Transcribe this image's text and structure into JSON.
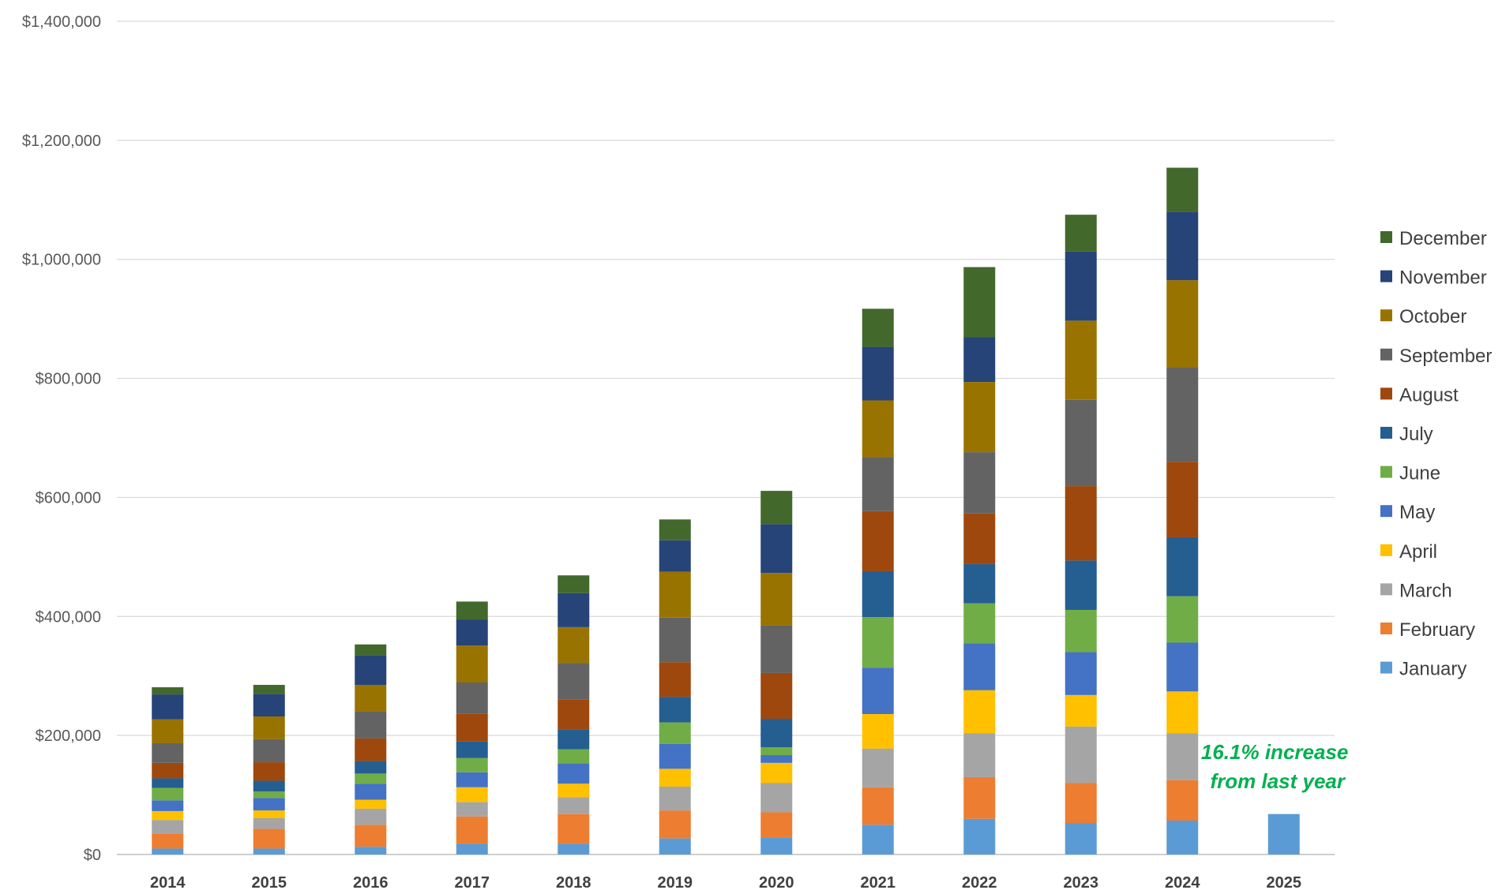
{
  "chart_data": {
    "type": "bar",
    "stacked": true,
    "categories": [
      "2014",
      "2015",
      "2016",
      "2017",
      "2018",
      "2019",
      "2020",
      "2021",
      "2022",
      "2023",
      "2024",
      "2025"
    ],
    "ylim": [
      0,
      1400000
    ],
    "yticks": [
      0,
      200000,
      400000,
      600000,
      800000,
      1000000,
      1200000,
      1400000
    ],
    "ytick_labels": [
      "$0",
      "$200,000",
      "$400,000",
      "$600,000",
      "$800,000",
      "$1,000,000",
      "$1,200,000",
      "$1,400,000"
    ],
    "grid": true,
    "legend_position": "right",
    "series": [
      {
        "name": "January",
        "color": "#5B9BD5",
        "values": [
          10000,
          10000,
          13000,
          18000,
          18000,
          27000,
          29000,
          50000,
          60000,
          53000,
          57000,
          68000
        ]
      },
      {
        "name": "February",
        "color": "#ED7D31",
        "values": [
          25000,
          33000,
          37000,
          46000,
          50000,
          47000,
          42000,
          63000,
          70000,
          67000,
          68000,
          null
        ]
      },
      {
        "name": "March",
        "color": "#A5A5A5",
        "values": [
          23000,
          18000,
          27000,
          24000,
          28000,
          40000,
          49000,
          65000,
          74000,
          95000,
          79000,
          null
        ]
      },
      {
        "name": "April",
        "color": "#FFC000",
        "values": [
          15000,
          13000,
          15000,
          25000,
          23000,
          30000,
          34000,
          58000,
          72000,
          53000,
          70000,
          null
        ]
      },
      {
        "name": "May",
        "color": "#4472C4",
        "values": [
          18000,
          21000,
          27000,
          25000,
          34000,
          42000,
          13000,
          78000,
          79000,
          72000,
          82000,
          null
        ]
      },
      {
        "name": "June",
        "color": "#70AD47",
        "values": [
          21000,
          11000,
          17000,
          24000,
          24000,
          36000,
          13000,
          85000,
          67000,
          71000,
          78000,
          null
        ]
      },
      {
        "name": "July",
        "color": "#255E91",
        "values": [
          16000,
          18000,
          21000,
          28000,
          33000,
          43000,
          48000,
          77000,
          66000,
          83000,
          99000,
          null
        ]
      },
      {
        "name": "August",
        "color": "#9E480E",
        "values": [
          26000,
          31000,
          38000,
          47000,
          50000,
          58000,
          77000,
          101000,
          85000,
          125000,
          127000,
          null
        ]
      },
      {
        "name": "September",
        "color": "#636363",
        "values": [
          33000,
          39000,
          45000,
          52000,
          62000,
          75000,
          80000,
          91000,
          103000,
          145000,
          158000,
          null
        ]
      },
      {
        "name": "October",
        "color": "#997300",
        "values": [
          40000,
          38000,
          45000,
          62000,
          60000,
          77000,
          88000,
          95000,
          118000,
          133000,
          147000,
          null
        ]
      },
      {
        "name": "November",
        "color": "#264478",
        "values": [
          42000,
          38000,
          50000,
          44000,
          57000,
          53000,
          82000,
          90000,
          75000,
          116000,
          115000,
          null
        ]
      },
      {
        "name": "December",
        "color": "#43682B",
        "values": [
          12000,
          15000,
          18000,
          30000,
          30000,
          35000,
          56000,
          64000,
          118000,
          62000,
          74000,
          null
        ]
      }
    ],
    "annotation": {
      "lines": [
        "16.1% increase",
        "from last year"
      ],
      "color": "#00B050"
    }
  }
}
